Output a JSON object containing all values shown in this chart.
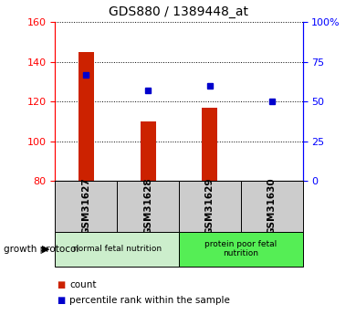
{
  "title": "GDS880 / 1389448_at",
  "samples": [
    "GSM31627",
    "GSM31628",
    "GSM31629",
    "GSM31630"
  ],
  "count_values": [
    145,
    110,
    117,
    80
  ],
  "percentile_values": [
    67,
    57,
    60,
    50
  ],
  "ylim_left": [
    80,
    160
  ],
  "ylim_right": [
    0,
    100
  ],
  "bar_color": "#cc2200",
  "dot_color": "#0000cc",
  "groups": [
    {
      "label": "normal fetal nutrition",
      "samples": [
        0,
        1
      ],
      "color": "#cceecc"
    },
    {
      "label": "protein poor fetal\nnutrition",
      "samples": [
        2,
        3
      ],
      "color": "#55ee55"
    }
  ],
  "group_label": "growth protocol",
  "legend_count_label": "count",
  "legend_pct_label": "percentile rank within the sample",
  "yticks_left": [
    80,
    100,
    120,
    140,
    160
  ],
  "yticks_right": [
    0,
    25,
    50,
    75,
    100
  ],
  "background_color": "#ffffff",
  "plot_bg_color": "#ffffff",
  "sample_box_color": "#cccccc"
}
